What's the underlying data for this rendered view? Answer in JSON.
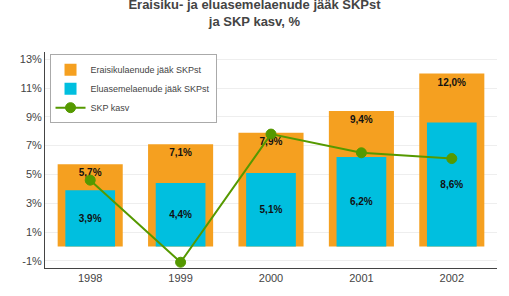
{
  "chart_data": {
    "type": "bar",
    "title": "Eraisiku- ja eluasemelaenude jääk SKPst\nja SKP kasv, %",
    "categories": [
      "1998",
      "1999",
      "2000",
      "2001",
      "2002"
    ],
    "series": [
      {
        "name": "Eraisikulaenude jääk SKPst",
        "type": "bar",
        "color": "#F5A020",
        "values": [
          5.7,
          7.1,
          7.9,
          9.4,
          12.0
        ],
        "value_labels": [
          "5,7%",
          "7,1%",
          "7,9%",
          "9,4%",
          "12,0%"
        ]
      },
      {
        "name": "Eluasemelaenude jääk SKPst",
        "type": "bar",
        "color": "#00BFDF",
        "values": [
          3.9,
          4.4,
          5.1,
          6.2,
          8.6
        ],
        "value_labels": [
          "3,9%",
          "4,4%",
          "5,1%",
          "6,2%",
          "8,6%"
        ]
      },
      {
        "name": "SKP kasv",
        "type": "line",
        "color": "#559900",
        "marker": "circle",
        "values": [
          4.6,
          -1.1,
          7.8,
          6.5,
          6.1
        ]
      }
    ],
    "ylim": [
      -1.5,
      13.5
    ],
    "yticks": [
      {
        "value": -1,
        "label": "-1%"
      },
      {
        "value": 1,
        "label": "1%"
      },
      {
        "value": 3,
        "label": "3%"
      },
      {
        "value": 5,
        "label": "5%"
      },
      {
        "value": 7,
        "label": "7%"
      },
      {
        "value": 9,
        "label": "9%"
      },
      {
        "value": 11,
        "label": "11%"
      },
      {
        "value": 13,
        "label": "13%"
      }
    ],
    "grid": true,
    "legend": "upper left",
    "data_labels": true
  }
}
